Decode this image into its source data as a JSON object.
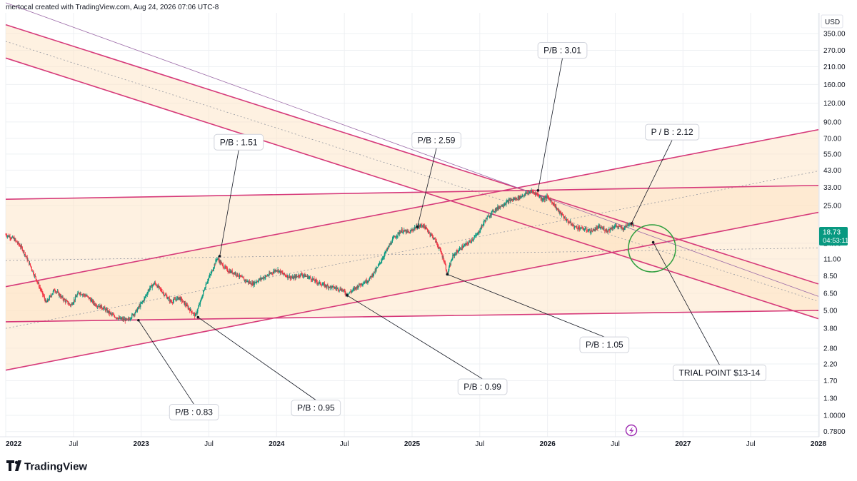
{
  "header": {
    "attribution": "mertocal created with TradingView.com, Aug 24, 2026 07:06 UTC-8"
  },
  "currency": "USD",
  "price_badge": {
    "price": "18.73",
    "countdown": "04:53:11",
    "color": "#089981"
  },
  "footer": {
    "brand": "TradingView"
  },
  "colors": {
    "channel_line": "#d63a7a",
    "channel_fill": "#fde3c4",
    "grid": "#eef0f3",
    "candle_up": "#089981",
    "candle_down": "#f23645",
    "circle": "#2e9e3e",
    "alert_icon": "#9c27b0"
  },
  "chart_data": {
    "type": "candlestick",
    "y_scale": "log",
    "ylim": [
      0.72,
      480
    ],
    "y_ticks": [
      "350.00",
      "270.00",
      "210.00",
      "160.00",
      "120.00",
      "90.00",
      "70.00",
      "55.00",
      "43.00",
      "33.00",
      "25.00",
      "14.00",
      "11.00",
      "8.50",
      "6.50",
      "5.00",
      "3.80",
      "2.80",
      "2.20",
      "1.70",
      "1.30",
      "1.0000",
      "0.7800"
    ],
    "x_ticks": [
      {
        "label": "2022",
        "t": 2022.0,
        "bold": true
      },
      {
        "label": "Jul",
        "t": 2022.5,
        "bold": false
      },
      {
        "label": "2023",
        "t": 2023.0,
        "bold": true
      },
      {
        "label": "Jul",
        "t": 2023.5,
        "bold": false
      },
      {
        "label": "2024",
        "t": 2024.0,
        "bold": true
      },
      {
        "label": "Jul",
        "t": 2024.5,
        "bold": false
      },
      {
        "label": "2025",
        "t": 2025.0,
        "bold": true
      },
      {
        "label": "Jul",
        "t": 2025.5,
        "bold": false
      },
      {
        "label": "2026",
        "t": 2026.0,
        "bold": true
      },
      {
        "label": "Jul",
        "t": 2026.5,
        "bold": false
      },
      {
        "label": "2027",
        "t": 2027.0,
        "bold": true
      },
      {
        "label": "Jul",
        "t": 2027.5,
        "bold": false
      },
      {
        "label": "2028",
        "t": 2028.0,
        "bold": true
      }
    ],
    "xlim": [
      2022.0,
      2028.0
    ],
    "price_path": [
      [
        2022.0,
        16
      ],
      [
        2022.06,
        15
      ],
      [
        2022.12,
        13
      ],
      [
        2022.18,
        10
      ],
      [
        2022.24,
        7.5
      ],
      [
        2022.3,
        5.6
      ],
      [
        2022.36,
        6.9
      ],
      [
        2022.42,
        6.0
      ],
      [
        2022.48,
        5.4
      ],
      [
        2022.54,
        6.6
      ],
      [
        2022.6,
        6.2
      ],
      [
        2022.66,
        5.5
      ],
      [
        2022.72,
        5.2
      ],
      [
        2022.78,
        4.7
      ],
      [
        2022.84,
        4.4
      ],
      [
        2022.9,
        4.3
      ],
      [
        2022.96,
        4.9
      ],
      [
        2023.02,
        5.9
      ],
      [
        2023.06,
        7.0
      ],
      [
        2023.1,
        7.6
      ],
      [
        2023.16,
        6.6
      ],
      [
        2023.22,
        5.7
      ],
      [
        2023.28,
        6.1
      ],
      [
        2023.34,
        5.3
      ],
      [
        2023.4,
        4.6
      ],
      [
        2023.44,
        5.8
      ],
      [
        2023.48,
        7.6
      ],
      [
        2023.52,
        9.0
      ],
      [
        2023.56,
        11.2
      ],
      [
        2023.6,
        10.0
      ],
      [
        2023.64,
        9.2
      ],
      [
        2023.7,
        8.8
      ],
      [
        2023.76,
        8.0
      ],
      [
        2023.82,
        7.5
      ],
      [
        2023.88,
        8.1
      ],
      [
        2023.94,
        8.6
      ],
      [
        2024.0,
        9.4
      ],
      [
        2024.06,
        8.6
      ],
      [
        2024.12,
        8.2
      ],
      [
        2024.18,
        8.7
      ],
      [
        2024.24,
        8.3
      ],
      [
        2024.3,
        7.7
      ],
      [
        2024.36,
        7.3
      ],
      [
        2024.42,
        7.1
      ],
      [
        2024.48,
        6.9
      ],
      [
        2024.52,
        6.4
      ],
      [
        2024.56,
        6.8
      ],
      [
        2024.62,
        7.5
      ],
      [
        2024.68,
        8.0
      ],
      [
        2024.74,
        9.5
      ],
      [
        2024.8,
        12.0
      ],
      [
        2024.86,
        15.0
      ],
      [
        2024.92,
        17.0
      ],
      [
        2024.98,
        16.5
      ],
      [
        2025.02,
        17.8
      ],
      [
        2025.08,
        18.5
      ],
      [
        2025.12,
        16.8
      ],
      [
        2025.16,
        15.2
      ],
      [
        2025.2,
        13.0
      ],
      [
        2025.24,
        10.5
      ],
      [
        2025.26,
        8.7
      ],
      [
        2025.3,
        11.5
      ],
      [
        2025.36,
        13.0
      ],
      [
        2025.42,
        14.2
      ],
      [
        2025.48,
        16.0
      ],
      [
        2025.54,
        20.0
      ],
      [
        2025.6,
        23.0
      ],
      [
        2025.66,
        25.0
      ],
      [
        2025.72,
        27.0
      ],
      [
        2025.78,
        28.0
      ],
      [
        2025.84,
        30.0
      ],
      [
        2025.88,
        31.0
      ],
      [
        2025.92,
        30.0
      ],
      [
        2025.96,
        27.5
      ],
      [
        2026.0,
        28.5
      ],
      [
        2026.04,
        26.0
      ],
      [
        2026.08,
        23.0
      ],
      [
        2026.14,
        20.0
      ],
      [
        2026.2,
        18.0
      ],
      [
        2026.26,
        17.5
      ],
      [
        2026.32,
        16.8
      ],
      [
        2026.38,
        18.0
      ],
      [
        2026.44,
        17.0
      ],
      [
        2026.5,
        18.3
      ],
      [
        2026.56,
        17.5
      ],
      [
        2026.6,
        19.0
      ],
      [
        2026.64,
        18.7
      ]
    ],
    "channels": [
      {
        "name": "descending-upper",
        "p1": [
          2022.0,
          400
        ],
        "p2": [
          2028.0,
          7.5
        ]
      },
      {
        "name": "descending-lower",
        "p1": [
          2022.0,
          240
        ],
        "p2": [
          2028.0,
          4.4
        ]
      },
      {
        "name": "ascending-upper",
        "p1": [
          2022.0,
          7.2
        ],
        "p2": [
          2028.0,
          80
        ]
      },
      {
        "name": "ascending-lower",
        "p1": [
          2022.0,
          2.0
        ],
        "p2": [
          2028.0,
          22.5
        ]
      },
      {
        "name": "horizontal-upper",
        "p1": [
          2022.0,
          27.5
        ],
        "p2": [
          2028.0,
          34
        ]
      },
      {
        "name": "horizontal-lower",
        "p1": [
          2022.0,
          4.2
        ],
        "p2": [
          2028.0,
          5.0
        ]
      }
    ],
    "annotations": [
      {
        "text": "P/B : 1.51",
        "anchor": [
          2023.58,
          11.5
        ],
        "label": [
          2023.72,
          66
        ]
      },
      {
        "text": "P/B : 2.59",
        "anchor": [
          2025.04,
          18.0
        ],
        "label": [
          2025.18,
          68
        ]
      },
      {
        "text": "P/B : 3.01",
        "anchor": [
          2025.93,
          31.5
        ],
        "label": [
          2026.11,
          270
        ]
      },
      {
        "text": "P / B : 2.12",
        "anchor": [
          2026.62,
          19.0
        ],
        "label": [
          2026.92,
          77
        ]
      },
      {
        "text": "P/B : 0.83",
        "anchor": [
          2022.98,
          4.3
        ],
        "label": [
          2023.39,
          1.05
        ]
      },
      {
        "text": "P/B : 0.95",
        "anchor": [
          2023.42,
          4.5
        ],
        "label": [
          2024.29,
          1.12
        ]
      },
      {
        "text": "P/B : 0.99",
        "anchor": [
          2024.52,
          6.3
        ],
        "label": [
          2025.52,
          1.55
        ]
      },
      {
        "text": "P/B : 1.05",
        "anchor": [
          2025.26,
          8.7
        ],
        "label": [
          2026.42,
          2.95
        ]
      },
      {
        "text": "TRIAL POINT $13-14",
        "anchor": [
          2026.78,
          14.2
        ],
        "label": [
          2027.27,
          1.92
        ]
      }
    ]
  }
}
